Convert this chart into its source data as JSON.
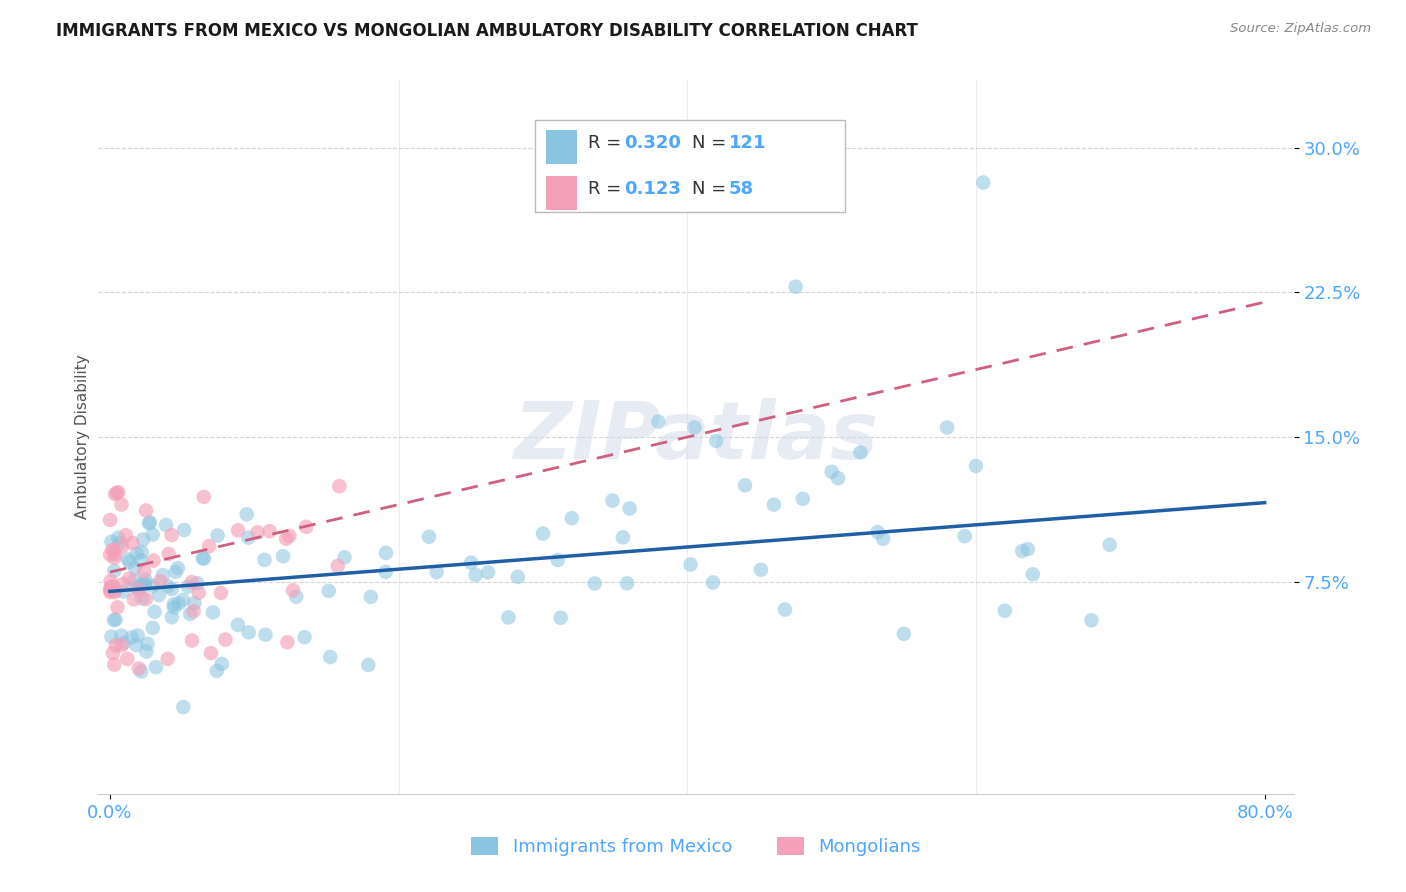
{
  "title": "IMMIGRANTS FROM MEXICO VS MONGOLIAN AMBULATORY DISABILITY CORRELATION CHART",
  "source": "Source: ZipAtlas.com",
  "ylabel": "Ambulatory Disability",
  "ytick_labels": [
    "7.5%",
    "15.0%",
    "22.5%",
    "30.0%"
  ],
  "ytick_values": [
    0.075,
    0.15,
    0.225,
    0.3
  ],
  "xlim": [
    -0.008,
    0.82
  ],
  "ylim": [
    -0.035,
    0.335
  ],
  "legend_blue_r": "0.320",
  "legend_blue_n": "121",
  "legend_pink_r": "0.123",
  "legend_pink_n": "58",
  "legend_label_blue": "Immigrants from Mexico",
  "legend_label_pink": "Mongolians",
  "blue_color": "#89c4e1",
  "blue_line_color": "#1f5fa6",
  "pink_color": "#f4a0b8",
  "pink_line_color": "#d06080",
  "background_color": "#ffffff",
  "grid_color": "#cccccc",
  "watermark": "ZIPatlas",
  "tick_color": "#4da6ff",
  "title_color": "#1a1a1a",
  "source_color": "#888888",
  "ylabel_color": "#555555"
}
